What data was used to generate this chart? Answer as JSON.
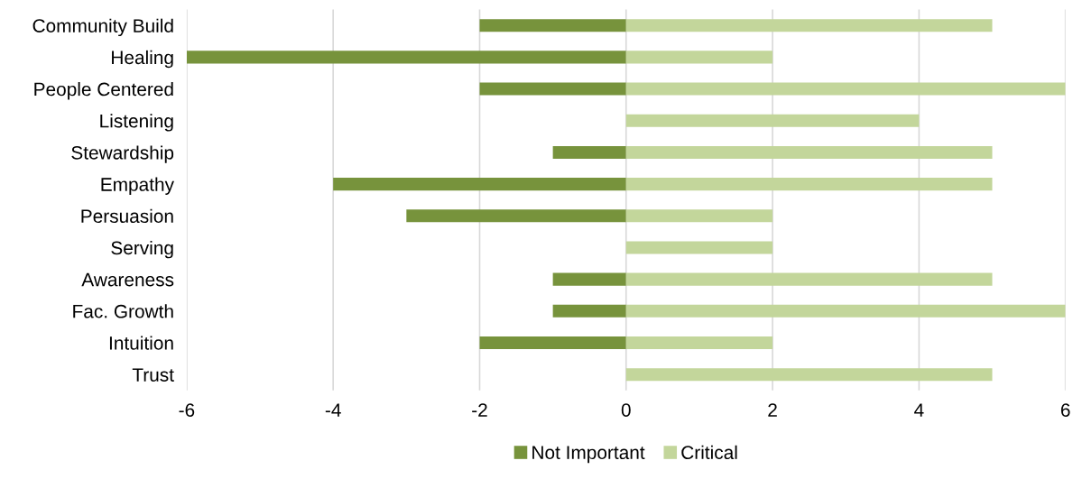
{
  "chart_data": {
    "type": "bar",
    "orientation": "horizontal",
    "stacked": true,
    "categories": [
      "Community Build",
      "Healing",
      "People Centered",
      "Listening",
      "Stewardship",
      "Empathy",
      "Persuasion",
      "Serving",
      "Awareness",
      "Fac. Growth",
      "Intuition",
      "Trust"
    ],
    "series": [
      {
        "name": "Not Important",
        "color": "#77933c",
        "values": [
          -2,
          -6,
          -2,
          0,
          -1,
          -4,
          -3,
          0,
          -1,
          -1,
          -2,
          0
        ]
      },
      {
        "name": "Critical",
        "color": "#c3d69b",
        "values": [
          5,
          2,
          6,
          4,
          5,
          5,
          2,
          2,
          5,
          6,
          2,
          5
        ]
      }
    ],
    "xlim": [
      -6,
      6
    ],
    "xticks": [
      -6,
      -4,
      -2,
      0,
      2,
      4,
      6
    ],
    "grid": "x",
    "legend": "bottom"
  }
}
